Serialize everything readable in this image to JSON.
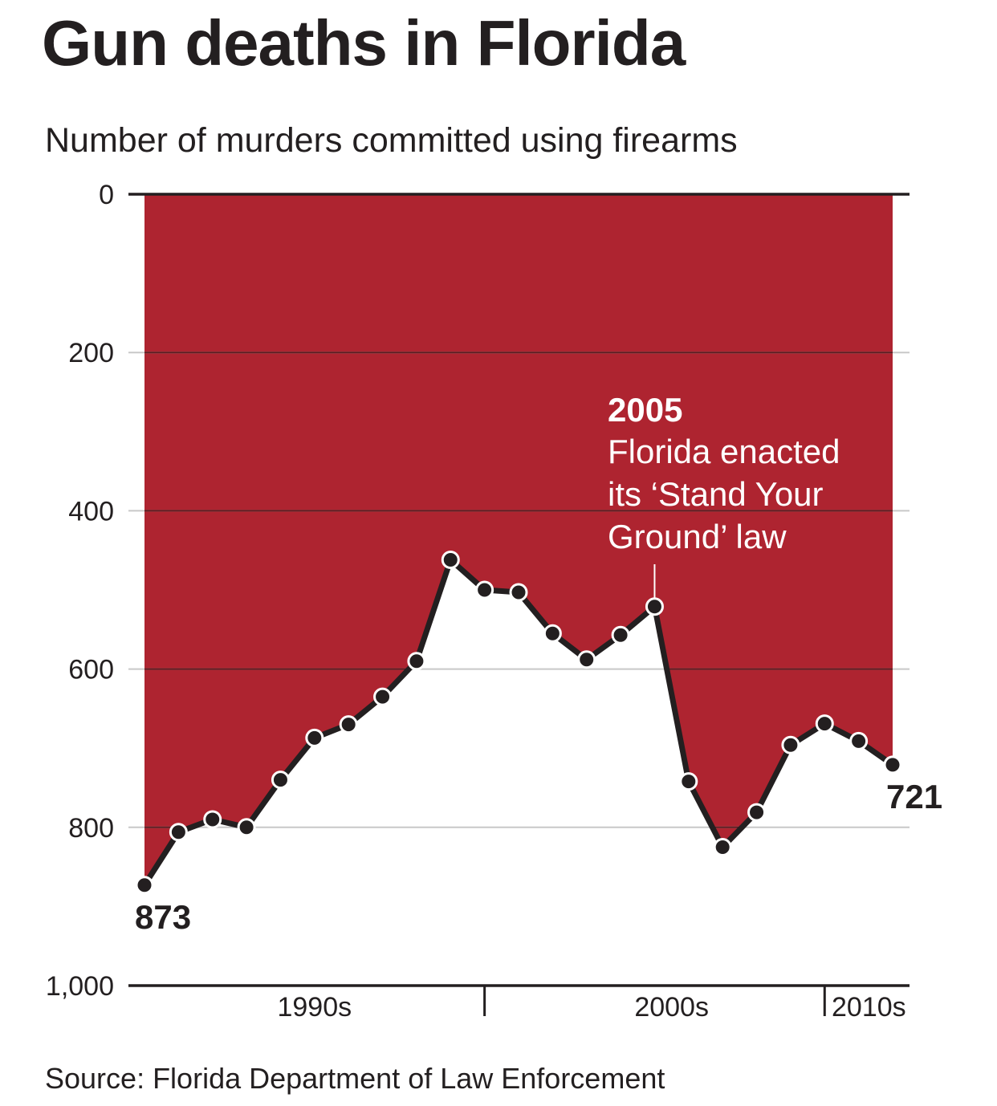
{
  "chart_data": {
    "type": "area",
    "title": "Gun deaths in Florida",
    "subtitle": "Number of murders committed using firearms",
    "source": "Source: Florida Department of Law Enforcement",
    "ylim": [
      0,
      1000
    ],
    "y_inverted": true,
    "y_ticks": [
      "0",
      "200",
      "400",
      "600",
      "800",
      "1,000"
    ],
    "y_tick_values": [
      0,
      200,
      400,
      600,
      800,
      1000
    ],
    "x_range": [
      1990,
      2012
    ],
    "x_boundaries": [
      2000,
      2010
    ],
    "x_period_labels": [
      {
        "label": "1990s",
        "center": 1995
      },
      {
        "label": "2000s",
        "center": 2005.5
      },
      {
        "label": "2010s",
        "center": 2011.3
      }
    ],
    "grid": true,
    "series": [
      {
        "x": [
          1990,
          1991,
          1992,
          1993,
          1994,
          1995,
          1996,
          1997,
          1998,
          1999,
          2000,
          2001,
          2002,
          2003,
          2004,
          2005,
          2006,
          2007,
          2008,
          2009,
          2010,
          2011,
          2012
        ],
        "values": [
          873,
          806,
          790,
          800,
          740,
          687,
          670,
          635,
          590,
          462,
          500,
          503,
          555,
          588,
          557,
          521,
          742,
          825,
          781,
          696,
          669,
          691,
          721
        ]
      }
    ],
    "start_label": "873",
    "end_label": "721",
    "annotation": {
      "x": 2005,
      "year": "2005",
      "lines": [
        "Florida enacted",
        "its ‘Stand Your",
        "Ground’ law"
      ]
    },
    "colors": {
      "fill": "#ae2430",
      "line": "#231f20",
      "marker_fill": "#231f20",
      "marker_stroke": "#ffffff",
      "grid_on_fill": "#5c1a1f",
      "grid_on_white": "#c8c8c8",
      "annotation_text": "#ffffff"
    }
  }
}
